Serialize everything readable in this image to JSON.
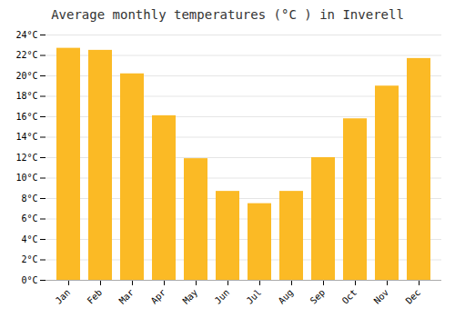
{
  "chart_data": {
    "type": "bar",
    "title": "Average monthly temperatures (°C ) in Inverell",
    "categories": [
      "Jan",
      "Feb",
      "Mar",
      "Apr",
      "May",
      "Jun",
      "Jul",
      "Aug",
      "Sep",
      "Oct",
      "Nov",
      "Dec"
    ],
    "values": [
      22.7,
      22.5,
      20.2,
      16.1,
      11.9,
      8.7,
      7.5,
      8.7,
      12.0,
      15.8,
      19.0,
      21.7
    ],
    "color": "#FBBA25",
    "ylim": [
      0,
      24
    ],
    "yticks": [
      {
        "value": 0,
        "label": "0°C"
      },
      {
        "value": 2,
        "label": "2°C"
      },
      {
        "value": 4,
        "label": "4°C"
      },
      {
        "value": 6,
        "label": "6°C"
      },
      {
        "value": 8,
        "label": "8°C"
      },
      {
        "value": 10,
        "label": "10°C"
      },
      {
        "value": 12,
        "label": "12°C"
      },
      {
        "value": 14,
        "label": "14°C"
      },
      {
        "value": 16,
        "label": "16°C"
      },
      {
        "value": 18,
        "label": "18°C"
      },
      {
        "value": 20,
        "label": "20°C"
      },
      {
        "value": 22,
        "label": "22°C"
      },
      {
        "value": 24,
        "label": "24°C"
      }
    ],
    "grid": true
  }
}
